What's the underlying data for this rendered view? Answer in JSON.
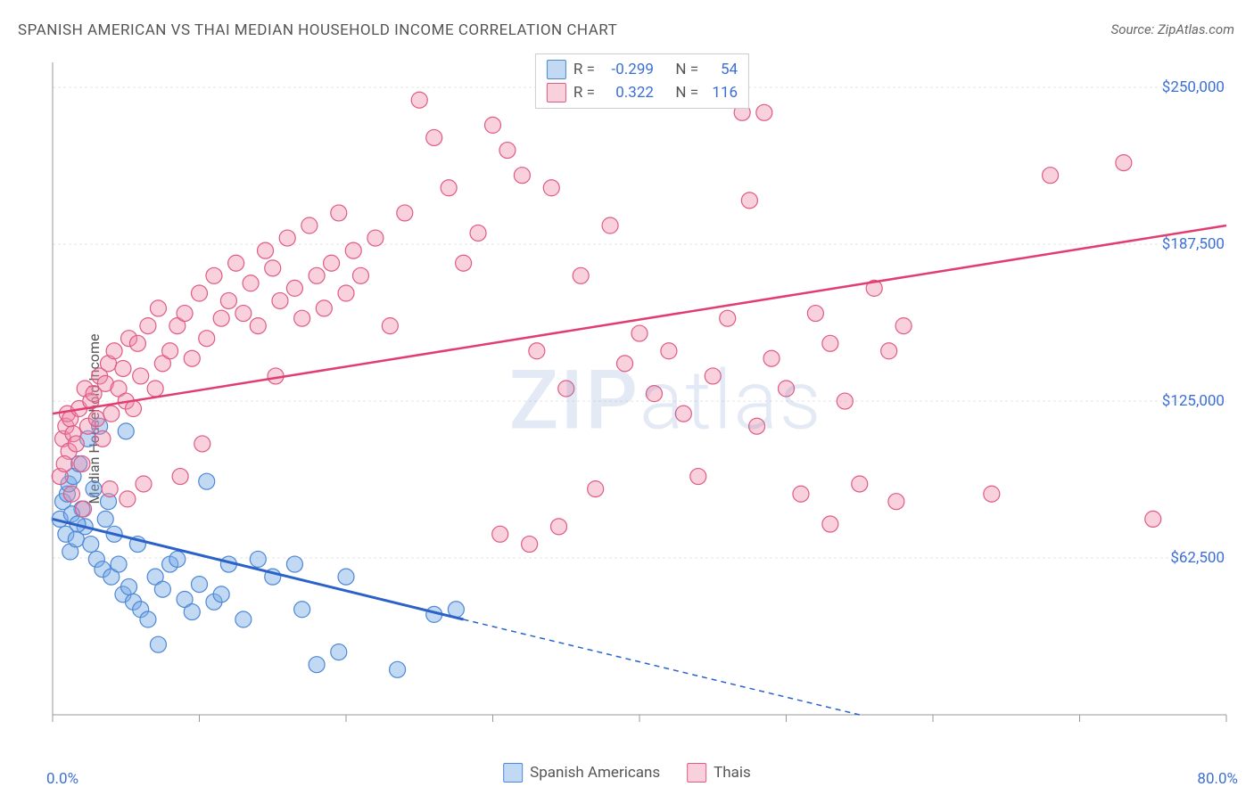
{
  "title": "SPANISH AMERICAN VS THAI MEDIAN HOUSEHOLD INCOME CORRELATION CHART",
  "source_label": "Source: ZipAtlas.com",
  "ylabel": "Median Household Income",
  "watermark_a": "ZIP",
  "watermark_b": "atlas",
  "chart": {
    "type": "scatter",
    "xlim": [
      0,
      80
    ],
    "ylim": [
      0,
      260000
    ],
    "x_min_label": "0.0%",
    "x_max_label": "80.0%",
    "y_ticks": [
      62500,
      125000,
      187500,
      250000
    ],
    "y_tick_labels": [
      "$62,500",
      "$125,000",
      "$187,500",
      "$250,000"
    ],
    "x_ticks": [
      0,
      10,
      20,
      30,
      40,
      50,
      60,
      70,
      80
    ],
    "grid_color": "#e5e5e5",
    "axis_color": "#999999",
    "background": "#ffffff",
    "marker_radius": 9,
    "marker_stroke_width": 1.2,
    "series": [
      {
        "name": "Spanish Americans",
        "fill": "rgba(120,170,230,0.45)",
        "stroke": "#4d87d6",
        "R": "-0.299",
        "N": "54",
        "trend": {
          "x1": 0,
          "y1": 78000,
          "x2": 28,
          "y2": 38000,
          "color": "#2a62c9",
          "width": 3,
          "solid": true
        },
        "trend_ext": {
          "x1": 28,
          "y1": 38000,
          "x2": 55,
          "y2": 0,
          "color": "#2a62c9",
          "width": 1.5,
          "dash": "6 5"
        },
        "points": [
          [
            0.5,
            78000
          ],
          [
            0.7,
            85000
          ],
          [
            0.9,
            72000
          ],
          [
            1.0,
            88000
          ],
          [
            1.1,
            92000
          ],
          [
            1.2,
            65000
          ],
          [
            1.4,
            95000
          ],
          [
            1.6,
            70000
          ],
          [
            1.8,
            100000
          ],
          [
            2.0,
            82000
          ],
          [
            2.2,
            75000
          ],
          [
            2.4,
            110000
          ],
          [
            2.6,
            68000
          ],
          [
            2.8,
            90000
          ],
          [
            3.0,
            62000
          ],
          [
            3.2,
            115000
          ],
          [
            3.4,
            58000
          ],
          [
            3.6,
            78000
          ],
          [
            3.8,
            85000
          ],
          [
            4.0,
            55000
          ],
          [
            4.2,
            72000
          ],
          [
            4.5,
            60000
          ],
          [
            4.8,
            48000
          ],
          [
            5.0,
            113000
          ],
          [
            5.2,
            51000
          ],
          [
            5.5,
            45000
          ],
          [
            5.8,
            68000
          ],
          [
            6.0,
            42000
          ],
          [
            6.5,
            38000
          ],
          [
            7.0,
            55000
          ],
          [
            7.2,
            28000
          ],
          [
            7.5,
            50000
          ],
          [
            8.0,
            60000
          ],
          [
            8.5,
            62000
          ],
          [
            9.0,
            46000
          ],
          [
            9.5,
            41000
          ],
          [
            10.0,
            52000
          ],
          [
            10.5,
            93000
          ],
          [
            11.0,
            45000
          ],
          [
            11.5,
            48000
          ],
          [
            12.0,
            60000
          ],
          [
            13.0,
            38000
          ],
          [
            14.0,
            62000
          ],
          [
            15.0,
            55000
          ],
          [
            16.5,
            60000
          ],
          [
            17.0,
            42000
          ],
          [
            18.0,
            20000
          ],
          [
            19.5,
            25000
          ],
          [
            20.0,
            55000
          ],
          [
            23.5,
            18000
          ],
          [
            26.0,
            40000
          ],
          [
            27.5,
            42000
          ],
          [
            1.3,
            80000
          ],
          [
            1.7,
            76000
          ]
        ]
      },
      {
        "name": "Thais",
        "fill": "rgba(240,140,170,0.4)",
        "stroke": "#e05a86",
        "R": "0.322",
        "N": "116",
        "trend": {
          "x1": 0,
          "y1": 120000,
          "x2": 80,
          "y2": 195000,
          "color": "#e23d71",
          "width": 2.5,
          "solid": true
        },
        "points": [
          [
            0.5,
            95000
          ],
          [
            0.7,
            110000
          ],
          [
            0.9,
            115000
          ],
          [
            1.0,
            120000
          ],
          [
            1.1,
            105000
          ],
          [
            1.2,
            118000
          ],
          [
            1.4,
            112000
          ],
          [
            1.6,
            108000
          ],
          [
            1.8,
            122000
          ],
          [
            2.0,
            100000
          ],
          [
            2.2,
            130000
          ],
          [
            2.4,
            115000
          ],
          [
            2.6,
            125000
          ],
          [
            2.8,
            128000
          ],
          [
            3.0,
            118000
          ],
          [
            3.2,
            135000
          ],
          [
            3.4,
            110000
          ],
          [
            3.6,
            132000
          ],
          [
            3.8,
            140000
          ],
          [
            4.0,
            120000
          ],
          [
            4.2,
            145000
          ],
          [
            4.5,
            130000
          ],
          [
            4.8,
            138000
          ],
          [
            5.0,
            125000
          ],
          [
            5.2,
            150000
          ],
          [
            5.5,
            122000
          ],
          [
            5.8,
            148000
          ],
          [
            6.0,
            135000
          ],
          [
            6.5,
            155000
          ],
          [
            7.0,
            130000
          ],
          [
            7.2,
            162000
          ],
          [
            7.5,
            140000
          ],
          [
            8.0,
            145000
          ],
          [
            8.5,
            155000
          ],
          [
            9.0,
            160000
          ],
          [
            9.5,
            142000
          ],
          [
            10.0,
            168000
          ],
          [
            10.5,
            150000
          ],
          [
            11.0,
            175000
          ],
          [
            11.5,
            158000
          ],
          [
            12.0,
            165000
          ],
          [
            12.5,
            180000
          ],
          [
            13.0,
            160000
          ],
          [
            13.5,
            172000
          ],
          [
            14.0,
            155000
          ],
          [
            14.5,
            185000
          ],
          [
            15.0,
            178000
          ],
          [
            15.5,
            165000
          ],
          [
            16.0,
            190000
          ],
          [
            16.5,
            170000
          ],
          [
            17.0,
            158000
          ],
          [
            17.5,
            195000
          ],
          [
            18.0,
            175000
          ],
          [
            18.5,
            162000
          ],
          [
            19.0,
            180000
          ],
          [
            19.5,
            200000
          ],
          [
            20.0,
            168000
          ],
          [
            20.5,
            185000
          ],
          [
            21.0,
            175000
          ],
          [
            22.0,
            190000
          ],
          [
            23.0,
            155000
          ],
          [
            24.0,
            200000
          ],
          [
            25.0,
            245000
          ],
          [
            26.0,
            230000
          ],
          [
            27.0,
            210000
          ],
          [
            28.0,
            180000
          ],
          [
            29.0,
            192000
          ],
          [
            30.0,
            235000
          ],
          [
            31.0,
            225000
          ],
          [
            32.0,
            215000
          ],
          [
            33.0,
            145000
          ],
          [
            34.0,
            210000
          ],
          [
            35.0,
            130000
          ],
          [
            36.0,
            175000
          ],
          [
            37.0,
            90000
          ],
          [
            38.0,
            195000
          ],
          [
            39.0,
            140000
          ],
          [
            40.0,
            152000
          ],
          [
            41.0,
            128000
          ],
          [
            42.0,
            145000
          ],
          [
            43.0,
            120000
          ],
          [
            44.0,
            95000
          ],
          [
            45.0,
            135000
          ],
          [
            46.0,
            158000
          ],
          [
            47.0,
            240000
          ],
          [
            48.0,
            115000
          ],
          [
            49.0,
            142000
          ],
          [
            50.0,
            130000
          ],
          [
            51.0,
            88000
          ],
          [
            52.0,
            160000
          ],
          [
            53.0,
            148000
          ],
          [
            54.0,
            125000
          ],
          [
            55.0,
            92000
          ],
          [
            56.0,
            170000
          ],
          [
            57.0,
            145000
          ],
          [
            58.0,
            155000
          ],
          [
            30.5,
            72000
          ],
          [
            32.5,
            68000
          ],
          [
            34.5,
            75000
          ],
          [
            47.5,
            205000
          ],
          [
            48.5,
            240000
          ],
          [
            53.0,
            76000
          ],
          [
            57.5,
            85000
          ],
          [
            64.0,
            88000
          ],
          [
            68.0,
            215000
          ],
          [
            73.0,
            220000
          ],
          [
            75.0,
            78000
          ],
          [
            15.2,
            135000
          ],
          [
            10.2,
            108000
          ],
          [
            8.7,
            95000
          ],
          [
            3.9,
            90000
          ],
          [
            5.1,
            86000
          ],
          [
            2.1,
            82000
          ],
          [
            1.3,
            88000
          ],
          [
            0.8,
            100000
          ],
          [
            6.2,
            92000
          ]
        ]
      }
    ],
    "legend_bottom": [
      {
        "label": "Spanish Americans",
        "fill": "rgba(120,170,230,0.45)",
        "stroke": "#4d87d6"
      },
      {
        "label": "Thais",
        "fill": "rgba(240,140,170,0.4)",
        "stroke": "#e05a86"
      }
    ]
  }
}
